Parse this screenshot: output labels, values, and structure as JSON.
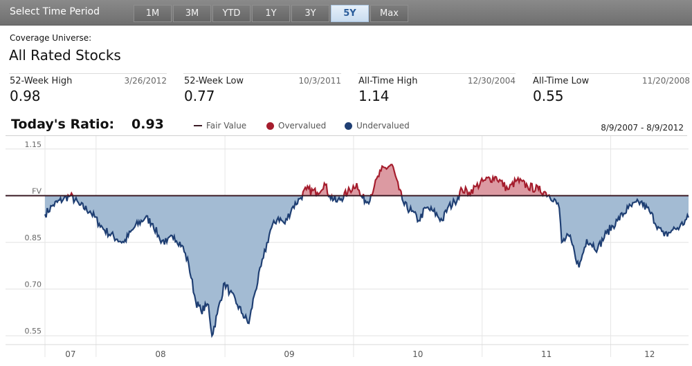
{
  "toolbar": {
    "label": "Select Time Period",
    "periods": [
      "1M",
      "3M",
      "YTD",
      "1Y",
      "3Y",
      "5Y",
      "Max"
    ],
    "active": "5Y"
  },
  "coverage": {
    "label": "Coverage Universe:",
    "value": "All Rated Stocks"
  },
  "stats": [
    {
      "label": "52-Week High",
      "date": "3/26/2012",
      "value": "0.98"
    },
    {
      "label": "52-Week Low",
      "date": "10/3/2011",
      "value": "0.77"
    },
    {
      "label": "All-Time High",
      "date": "12/30/2004",
      "value": "1.14"
    },
    {
      "label": "All-Time Low",
      "date": "11/20/2008",
      "value": "0.55"
    }
  ],
  "chart_header": {
    "ratio_label": "Today's Ratio:",
    "ratio_value": "0.93",
    "legend": [
      "Fair Value",
      "Overvalued",
      "Undervalued"
    ],
    "range": "8/9/2007 - 8/9/2012"
  },
  "colors": {
    "fair_value": "#3a1a24",
    "overvalued_line": "#a51d2d",
    "overvalued_fill": "#dc9aa2",
    "undervalued_line": "#1f3f73",
    "undervalued_fill": "#a3bbd3"
  },
  "chart_data": {
    "type": "area",
    "title": "",
    "xlabel": "",
    "ylabel": "",
    "y_ticks": [
      {
        "value": 1.15,
        "label": "1.15"
      },
      {
        "value": 1.0,
        "label": "FV"
      },
      {
        "value": 0.85,
        "label": "0.85"
      },
      {
        "value": 0.7,
        "label": "0.70"
      },
      {
        "value": 0.55,
        "label": "0.55"
      }
    ],
    "ylim": [
      0.535,
      1.165
    ],
    "x_ticks": [
      "07",
      "08",
      "09",
      "10",
      "11",
      "12"
    ],
    "x_range": [
      "2007-08-09",
      "2012-08-09"
    ],
    "grid": true,
    "baseline": 1.0,
    "series": [
      {
        "values": [
          [
            "2007-08-09",
            0.94
          ],
          [
            "2007-09-01",
            0.97
          ],
          [
            "2007-10-01",
            0.99
          ],
          [
            "2007-10-20",
            1.0
          ],
          [
            "2007-11-15",
            0.97
          ],
          [
            "2007-12-15",
            0.95
          ],
          [
            "2008-01-10",
            0.91
          ],
          [
            "2008-01-25",
            0.89
          ],
          [
            "2008-03-01",
            0.86
          ],
          [
            "2008-03-20",
            0.85
          ],
          [
            "2008-04-20",
            0.9
          ],
          [
            "2008-05-20",
            0.93
          ],
          [
            "2008-06-10",
            0.91
          ],
          [
            "2008-06-30",
            0.86
          ],
          [
            "2008-07-20",
            0.85
          ],
          [
            "2008-08-10",
            0.87
          ],
          [
            "2008-09-01",
            0.84
          ],
          [
            "2008-09-20",
            0.78
          ],
          [
            "2008-10-10",
            0.66
          ],
          [
            "2008-10-25",
            0.63
          ],
          [
            "2008-11-15",
            0.65
          ],
          [
            "2008-11-25",
            0.55
          ],
          [
            "2008-12-10",
            0.62
          ],
          [
            "2008-12-31",
            0.72
          ],
          [
            "2009-01-15",
            0.69
          ],
          [
            "2009-02-05",
            0.65
          ],
          [
            "2009-02-20",
            0.62
          ],
          [
            "2009-03-10",
            0.59
          ],
          [
            "2009-03-25",
            0.68
          ],
          [
            "2009-04-20",
            0.8
          ],
          [
            "2009-05-10",
            0.89
          ],
          [
            "2009-06-01",
            0.93
          ],
          [
            "2009-06-20",
            0.91
          ],
          [
            "2009-07-10",
            0.96
          ],
          [
            "2009-08-01",
            0.99
          ],
          [
            "2009-08-20",
            1.02
          ],
          [
            "2009-09-20",
            1.01
          ],
          [
            "2009-10-10",
            1.04
          ],
          [
            "2009-10-25",
            1.0
          ],
          [
            "2009-11-15",
            0.98
          ],
          [
            "2009-12-15",
            1.01
          ],
          [
            "2010-01-10",
            1.04
          ],
          [
            "2010-01-20",
            1.0
          ],
          [
            "2010-02-10",
            0.98
          ],
          [
            "2010-03-01",
            1.03
          ],
          [
            "2010-03-20",
            1.08
          ],
          [
            "2010-04-20",
            1.1
          ],
          [
            "2010-05-10",
            1.02
          ],
          [
            "2010-05-25",
            0.97
          ],
          [
            "2010-06-15",
            0.95
          ],
          [
            "2010-07-05",
            0.92
          ],
          [
            "2010-07-25",
            0.96
          ],
          [
            "2010-08-15",
            0.95
          ],
          [
            "2010-09-10",
            0.92
          ],
          [
            "2010-09-25",
            0.96
          ],
          [
            "2010-10-15",
            0.98
          ],
          [
            "2010-11-05",
            1.02
          ],
          [
            "2010-11-25",
            1.01
          ],
          [
            "2010-12-15",
            1.03
          ],
          [
            "2011-01-10",
            1.05
          ],
          [
            "2011-02-10",
            1.06
          ],
          [
            "2011-03-15",
            1.02
          ],
          [
            "2011-04-10",
            1.05
          ],
          [
            "2011-05-10",
            1.03
          ],
          [
            "2011-06-10",
            1.02
          ],
          [
            "2011-07-01",
            1.01
          ],
          [
            "2011-07-25",
            0.99
          ],
          [
            "2011-08-08",
            0.96
          ],
          [
            "2011-08-15",
            0.85
          ],
          [
            "2011-09-05",
            0.87
          ],
          [
            "2011-09-20",
            0.82
          ],
          [
            "2011-10-03",
            0.77
          ],
          [
            "2011-10-25",
            0.86
          ],
          [
            "2011-11-25",
            0.83
          ],
          [
            "2011-12-20",
            0.88
          ],
          [
            "2012-01-20",
            0.92
          ],
          [
            "2012-02-20",
            0.96
          ],
          [
            "2012-03-26",
            0.98
          ],
          [
            "2012-04-20",
            0.95
          ],
          [
            "2012-05-15",
            0.9
          ],
          [
            "2012-06-01",
            0.87
          ],
          [
            "2012-06-25",
            0.89
          ],
          [
            "2012-07-15",
            0.9
          ],
          [
            "2012-08-09",
            0.93
          ]
        ]
      }
    ]
  }
}
